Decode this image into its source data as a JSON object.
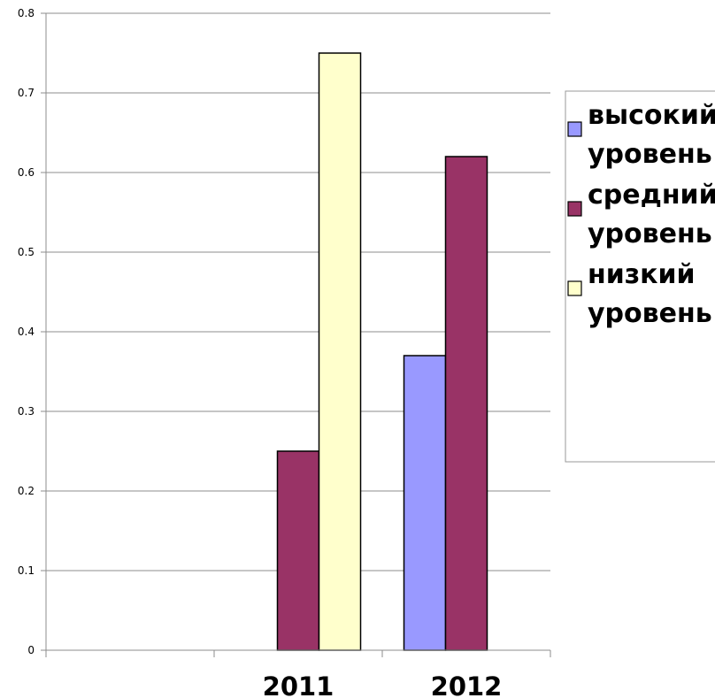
{
  "chart_data": {
    "type": "bar",
    "categories": [
      "",
      "2011",
      "2012"
    ],
    "series": [
      {
        "name": "высокий уровень",
        "values": [
          0,
          0,
          0.37
        ],
        "color": "#9999ff"
      },
      {
        "name": "средний уровень",
        "values": [
          0,
          0.25,
          0.62
        ],
        "color": "#993366"
      },
      {
        "name": "низкий уровень",
        "values": [
          0,
          0.75,
          0
        ],
        "color": "#ffffcc"
      }
    ],
    "ylim": [
      0,
      0.8
    ],
    "yticks": [
      "0",
      "0.1",
      "0.2",
      "0.3",
      "0.4",
      "0.5",
      "0.6",
      "0.7",
      "0.8"
    ],
    "grid": true,
    "legend_position": "right",
    "title": "",
    "xlabel": "",
    "ylabel": ""
  }
}
